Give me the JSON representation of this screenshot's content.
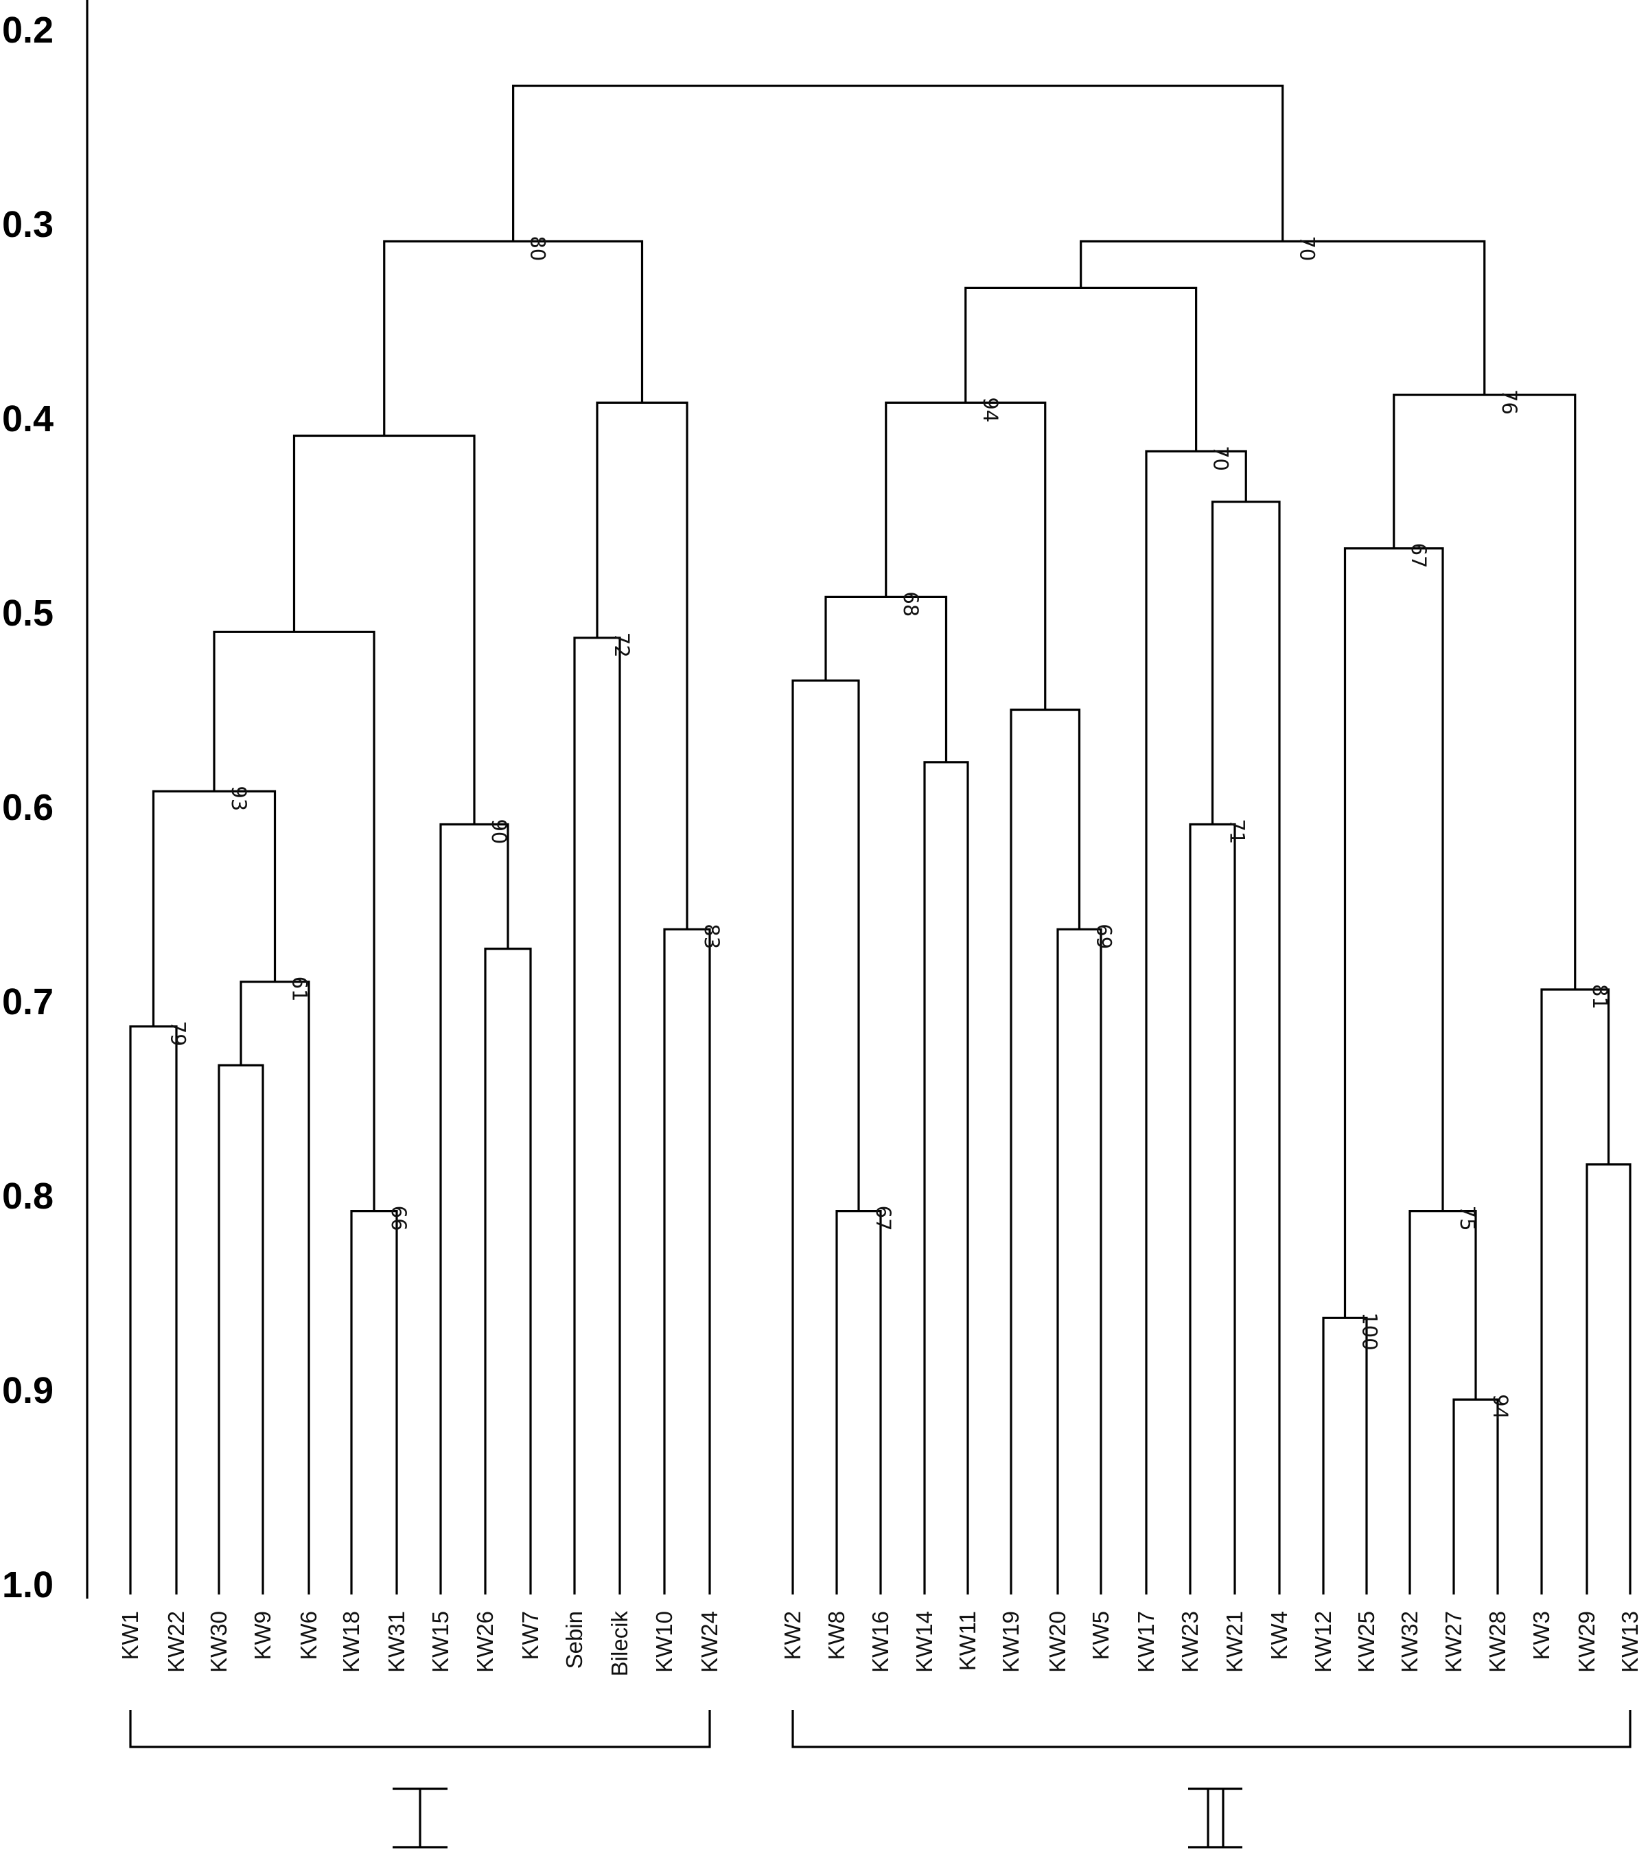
{
  "chart_data": {
    "type": "dendrogram",
    "axis": {
      "ticks": [
        {
          "value": 0.2,
          "label": "0.2"
        },
        {
          "value": 0.3,
          "label": "0.3"
        },
        {
          "value": 0.4,
          "label": "0.4"
        },
        {
          "value": 0.5,
          "label": "0.5"
        },
        {
          "value": 0.6,
          "label": "0.6"
        },
        {
          "value": 0.7,
          "label": "0.7"
        },
        {
          "value": 0.8,
          "label": "0.8"
        },
        {
          "value": 0.9,
          "label": "0.9"
        },
        {
          "value": 1.0,
          "label": "1.0"
        }
      ],
      "range": [
        0.2,
        1.0
      ]
    },
    "leaves": [
      "KW1",
      "KW22",
      "KW30",
      "KW9",
      "KW6",
      "KW18",
      "KW31",
      "KW15",
      "KW26",
      "KW7",
      "Sebin",
      "Bilecik",
      "KW10",
      "KW24",
      "KW2",
      "KW8",
      "KW16",
      "KW14",
      "KW11",
      "KW19",
      "KW20",
      "KW5",
      "KW17",
      "KW23",
      "KW21",
      "KW4",
      "KW12",
      "KW25",
      "KW32",
      "KW27",
      "KW28",
      "KW3",
      "KW29",
      "KW13"
    ],
    "merges": [
      {
        "id": "m1",
        "children": [
          "KW1",
          "KW22"
        ],
        "height": 0.713,
        "support": "79"
      },
      {
        "id": "m2",
        "children": [
          "KW30",
          "KW9"
        ],
        "height": 0.733,
        "support": ""
      },
      {
        "id": "m3",
        "children": [
          "m2",
          "KW6"
        ],
        "height": 0.69,
        "support": "61"
      },
      {
        "id": "m4",
        "children": [
          "m1",
          "m3"
        ],
        "height": 0.592,
        "support": "93"
      },
      {
        "id": "m5",
        "children": [
          "KW18",
          "KW31"
        ],
        "height": 0.808,
        "support": "66"
      },
      {
        "id": "m6",
        "children": [
          "m4",
          "m5"
        ],
        "height": 0.51,
        "support": ""
      },
      {
        "id": "m7",
        "children": [
          "KW26",
          "KW7"
        ],
        "height": 0.673,
        "support": ""
      },
      {
        "id": "m8",
        "children": [
          "KW15",
          "m7"
        ],
        "height": 0.609,
        "support": "90"
      },
      {
        "id": "m9",
        "children": [
          "m6",
          "m8"
        ],
        "height": 0.409,
        "support": ""
      },
      {
        "id": "m10",
        "children": [
          "Sebin",
          "Bilecik"
        ],
        "height": 0.513,
        "support": "72"
      },
      {
        "id": "m11",
        "children": [
          "KW10",
          "KW24"
        ],
        "height": 0.663,
        "support": "83"
      },
      {
        "id": "m12",
        "children": [
          "m10",
          "m11"
        ],
        "height": 0.392,
        "support": ""
      },
      {
        "id": "m13",
        "children": [
          "m9",
          "m12"
        ],
        "height": 0.309,
        "support": "80"
      },
      {
        "id": "m14",
        "children": [
          "KW8",
          "KW16"
        ],
        "height": 0.808,
        "support": "67"
      },
      {
        "id": "m15",
        "children": [
          "KW2",
          "m14"
        ],
        "height": 0.535,
        "support": ""
      },
      {
        "id": "m16",
        "children": [
          "KW14",
          "KW11"
        ],
        "height": 0.577,
        "support": ""
      },
      {
        "id": "m17",
        "children": [
          "m15",
          "m16"
        ],
        "height": 0.492,
        "support": "68"
      },
      {
        "id": "m18",
        "children": [
          "KW20",
          "KW5"
        ],
        "height": 0.663,
        "support": "69"
      },
      {
        "id": "m19",
        "children": [
          "KW19",
          "m18"
        ],
        "height": 0.55,
        "support": ""
      },
      {
        "id": "m20",
        "children": [
          "m17",
          "m19"
        ],
        "height": 0.392,
        "support": "94"
      },
      {
        "id": "m21",
        "children": [
          "KW23",
          "KW21"
        ],
        "height": 0.609,
        "support": "71"
      },
      {
        "id": "m22",
        "children": [
          "m21",
          "KW4"
        ],
        "height": 0.443,
        "support": ""
      },
      {
        "id": "m23",
        "children": [
          "KW17",
          "m22"
        ],
        "height": 0.417,
        "support": "70"
      },
      {
        "id": "m24",
        "children": [
          "m20",
          "m23"
        ],
        "height": 0.333,
        "support": ""
      },
      {
        "id": "m25",
        "children": [
          "KW12",
          "KW25"
        ],
        "height": 0.863,
        "support": "100"
      },
      {
        "id": "m26",
        "children": [
          "KW27",
          "KW28"
        ],
        "height": 0.905,
        "support": "94"
      },
      {
        "id": "m27",
        "children": [
          "KW32",
          "m26"
        ],
        "height": 0.808,
        "support": "75"
      },
      {
        "id": "m28",
        "children": [
          "m25",
          "m27"
        ],
        "height": 0.467,
        "support": "67"
      },
      {
        "id": "m29",
        "children": [
          "KW29",
          "KW13"
        ],
        "height": 0.784,
        "support": ""
      },
      {
        "id": "m30",
        "children": [
          "KW3",
          "m29"
        ],
        "height": 0.694,
        "support": "81"
      },
      {
        "id": "m31",
        "children": [
          "m28",
          "m30"
        ],
        "height": 0.388,
        "support": "76"
      },
      {
        "id": "m32",
        "children": [
          "m24",
          "m31"
        ],
        "height": 0.309,
        "support": "70"
      },
      {
        "id": "m33",
        "children": [
          "m13",
          "m32"
        ],
        "height": 0.229,
        "support": ""
      }
    ],
    "groups": [
      {
        "label": "I",
        "first": "KW1",
        "last": "KW24"
      },
      {
        "label": "II",
        "first": "KW2",
        "last": "KW13"
      }
    ]
  }
}
